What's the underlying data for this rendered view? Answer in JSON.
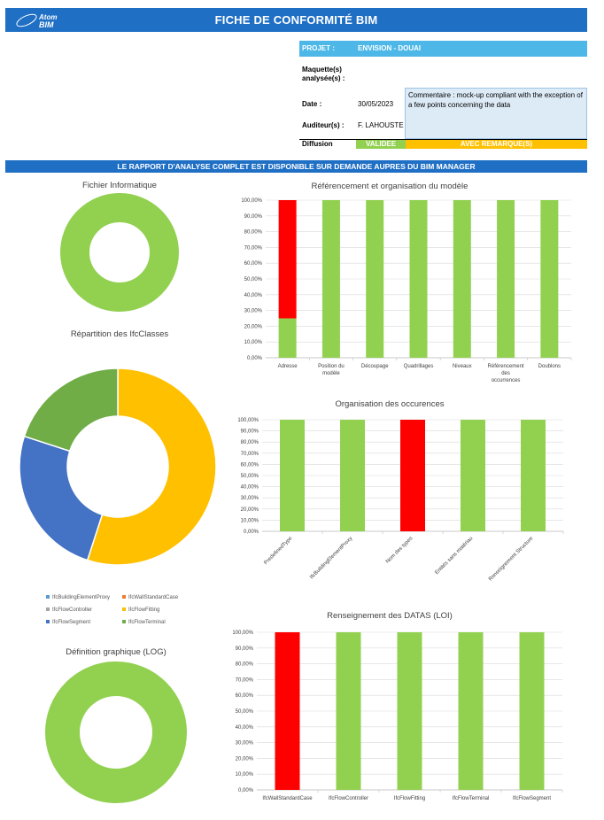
{
  "header": {
    "title": "FICHE DE CONFORMITÉ BIM",
    "logo": {
      "line1": "Atom",
      "line2": "BIM"
    }
  },
  "info": {
    "projet_label": "PROJET :",
    "projet_value": "ENVISION - DOUAI",
    "maquette_label": "Maquette(s) analysée(s) :",
    "date_label": "Date :",
    "date_value": "30/05/2023",
    "comment": "Commentaire : mock-up compliant with the exception of a few points concerning the data",
    "auditeur_label": "Auditeur(s) :",
    "auditeur_value": "F. LAHOUSTE",
    "diffusion_label": "Diffusion",
    "valid_label": "VALIDEE",
    "remark_label": "AVEC REMARQUE(S)"
  },
  "banner": "LE RAPPORT D'ANALYSE COMPLET EST DISPONIBLE SUR DEMANDE AUPRES DU BIM MANAGER",
  "colors": {
    "blue": "#1f6fc5",
    "light_blue": "#4db8e8",
    "green": "#92d050",
    "red": "#ff0000",
    "orange": "#ffc000",
    "comment_bg": "#ddebf7"
  },
  "charts": [
    {
      "id": "fichier",
      "type": "donut",
      "title": "Fichier Informatique",
      "slices": [
        {
          "value": 100,
          "color": "#92d050"
        }
      ]
    },
    {
      "id": "ifc",
      "type": "donut",
      "title": "Répartition des IfcClasses",
      "slices": [
        {
          "name": "IfcBuildingElementProxy",
          "value": 0,
          "color": "#5b9bd5"
        },
        {
          "name": "IfcWallStandardCase",
          "value": 0,
          "color": "#ed7d31"
        },
        {
          "name": "IfcFlowController",
          "value": 0,
          "color": "#a5a5a5"
        },
        {
          "name": "IfcFlowFitting",
          "value": 55,
          "color": "#ffc000"
        },
        {
          "name": "IfcFlowSegment",
          "value": 25,
          "color": "#4472c4"
        },
        {
          "name": "IfcFlowTerminal",
          "value": 20,
          "color": "#70ad47"
        }
      ]
    },
    {
      "id": "log",
      "type": "donut",
      "title": "Définition graphique (LOG)",
      "slices": [
        {
          "value": 100,
          "color": "#92d050"
        }
      ]
    },
    {
      "id": "ref",
      "type": "bar",
      "title": "Référencement et organisation du modèle",
      "categories": [
        "Adresse",
        "Position du modèle",
        "Découpage",
        "Quadrillages",
        "Niveaux",
        "Référencement des occurrences",
        "Doublons"
      ],
      "series": [
        {
          "color": "#92d050",
          "values": [
            25,
            100,
            100,
            100,
            100,
            100,
            100
          ]
        },
        {
          "color": "#ff0000",
          "values": [
            75,
            0,
            0,
            0,
            0,
            0,
            0
          ]
        }
      ],
      "ylim": [
        0,
        100
      ]
    },
    {
      "id": "occ",
      "type": "bar",
      "title": "Organisation des occurences",
      "categories": [
        "PredefinedType",
        "IfcBuildingElementProxy",
        "Nom des types",
        "Entités sans matériau",
        "Renseignement Structure"
      ],
      "series": [
        {
          "color": "#92d050",
          "values": [
            100,
            100,
            0,
            100,
            100
          ]
        },
        {
          "color": "#ff0000",
          "values": [
            0,
            0,
            100,
            0,
            0
          ]
        }
      ],
      "ylim": [
        0,
        100
      ]
    },
    {
      "id": "loi",
      "type": "bar",
      "title": "Renseignement des DATAS (LOI)",
      "categories": [
        "IfcWallStandardCase",
        "IfcFlowController",
        "IfcFlowFitting",
        "IfcFlowTerminal",
        "IfcFlowSegment"
      ],
      "series": [
        {
          "color": "#92d050",
          "values": [
            0,
            100,
            100,
            100,
            100
          ]
        },
        {
          "color": "#ff0000",
          "values": [
            100,
            0,
            0,
            0,
            0
          ]
        }
      ],
      "ylim": [
        0,
        100
      ]
    }
  ]
}
